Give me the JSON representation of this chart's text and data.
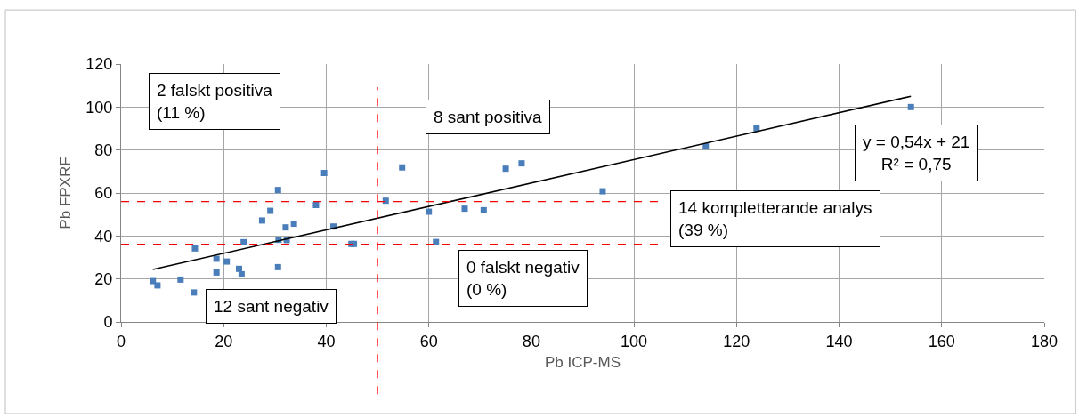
{
  "chart_data": {
    "type": "scatter",
    "xlabel": "Pb ICP-MS",
    "ylabel": "Pb FPXRF",
    "xlim": [
      0,
      180
    ],
    "xticks": [
      0,
      20,
      40,
      60,
      80,
      100,
      120,
      140,
      160,
      180
    ],
    "ylim": [
      0,
      120
    ],
    "yticks": [
      0,
      20,
      40,
      60,
      80,
      100,
      120
    ],
    "grid": true,
    "marker": "square",
    "series": [
      {
        "color": "#4a7ebb",
        "x": [
          6.2,
          7.1,
          11.6,
          14.2,
          14.4,
          18.6,
          18.6,
          20.6,
          23.0,
          23.5,
          23.9,
          27.5,
          29.1,
          30.6,
          30.6,
          30.7,
          32.1,
          32.3,
          33.7,
          38.0,
          39.6,
          41.4,
          44.9,
          45.4,
          51.6,
          54.8,
          60.0,
          61.4,
          67.0,
          70.7,
          75.0,
          78.1,
          93.9,
          114.0,
          123.9,
          154.0
        ],
        "values": [
          19,
          17.0,
          19.7,
          13.7,
          34.2,
          23.0,
          29.4,
          28.1,
          24.7,
          22.2,
          37.1,
          47.2,
          51.7,
          61.4,
          25.5,
          38.2,
          44.0,
          38.1,
          45.7,
          54.4,
          69.3,
          44.4,
          36.3,
          36.3,
          56.4,
          71.9,
          51.3,
          37.2,
          52.7,
          52.0,
          71.3,
          73.8,
          60.8,
          81.7,
          90.1,
          100.0
        ]
      },
      {
        "type": "line",
        "color": "#000000",
        "marker": "none",
        "line_style": "solid",
        "x": [
          6.2,
          154.0
        ],
        "values": [
          24.4,
          105
        ]
      }
    ],
    "ref_lines": [
      {
        "axis": "x",
        "value": 50,
        "color": "#ff0000",
        "line_style": "dashed"
      },
      {
        "axis": "y",
        "value": 36,
        "color": "#ff0000",
        "line_style": "dashed"
      },
      {
        "axis": "y",
        "value": 56,
        "color": "#ff0000",
        "line_style": "dashed"
      }
    ],
    "annotations": [
      "2 falskt positiva\n(11 %)",
      "8 sant positiva",
      "y = 0,54x + 21\nR² = 0,75",
      "14 kompletterande analys\n(39 %)",
      "0 falskt negativ\n(0 %)",
      "12 sant negativ"
    ]
  }
}
